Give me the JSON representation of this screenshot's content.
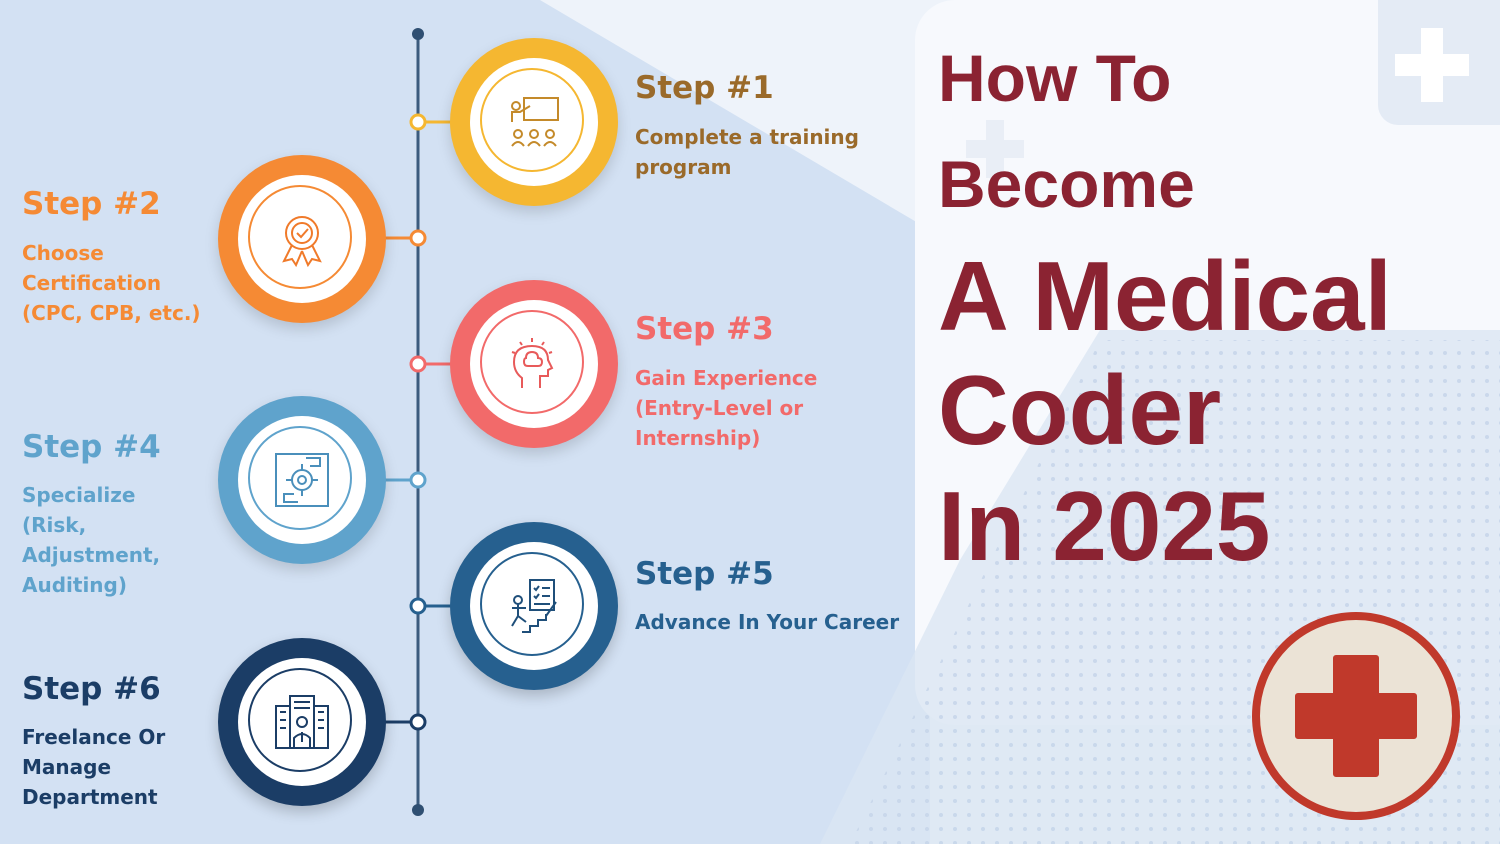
{
  "title": {
    "line1": "How To",
    "line2": "Become",
    "line3": "A Medical",
    "line4": "Coder",
    "line5": "In 2025"
  },
  "colors": {
    "title": "#8b2332",
    "step1": "#f5b731",
    "step1_text": "#9a6a2a",
    "step2": "#f58a34",
    "step3": "#f26a6a",
    "step4": "#5fa3cc",
    "step5": "#26608f",
    "step6": "#1b3d66",
    "badge_red": "#c0392b",
    "badge_fill": "#ebe3d6"
  },
  "steps": [
    {
      "title": "Step #1",
      "desc": "Complete a training program",
      "icon": "classroom-icon"
    },
    {
      "title": "Step #2",
      "desc": "Choose Certification (CPC, CPB, etc.)",
      "icon": "certificate-badge-icon"
    },
    {
      "title": "Step #3",
      "desc": "Gain Experience (Entry-Level or Internship)",
      "icon": "brain-head-icon"
    },
    {
      "title": "Step #4",
      "desc": "Specialize (Risk, Adjustment, Auditing)",
      "icon": "target-hands-icon"
    },
    {
      "title": "Step #5",
      "desc": "Advance In Your Career",
      "icon": "career-ladder-icon"
    },
    {
      "title": "Step #6",
      "desc": "Freelance Or Manage Department",
      "icon": "office-building-icon"
    }
  ]
}
